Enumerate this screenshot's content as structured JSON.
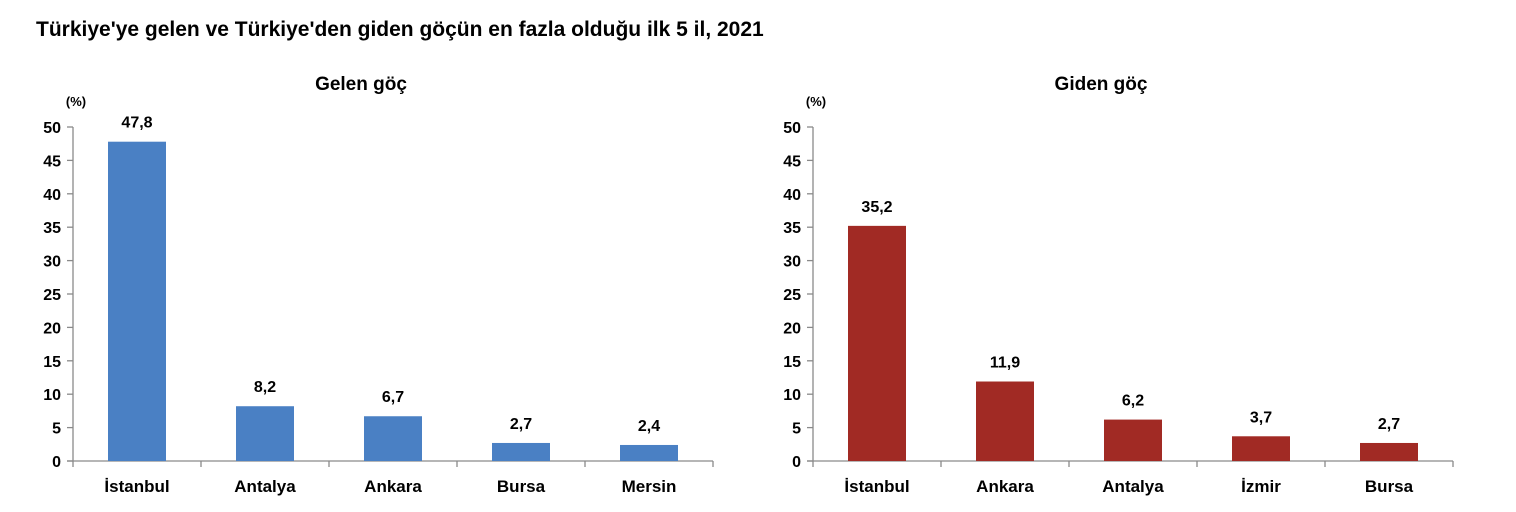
{
  "title": "Türkiye'ye gelen ve Türkiye'den giden göçün en fazla olduğu ilk 5 il, 2021",
  "chart_data": [
    {
      "type": "bar",
      "title": "Gelen göç",
      "unit": "(%)",
      "categories": [
        "İstanbul",
        "Antalya",
        "Ankara",
        "Bursa",
        "Mersin"
      ],
      "values": [
        47.8,
        8.2,
        6.7,
        2.7,
        2.4
      ],
      "value_labels": [
        "47,8",
        "8,2",
        "6,7",
        "2,7",
        "2,4"
      ],
      "ylim": [
        0,
        50
      ],
      "yticks": [
        0,
        5,
        10,
        15,
        20,
        25,
        30,
        35,
        40,
        45,
        50
      ],
      "color": "#4a80c4",
      "grid": false,
      "legend": false
    },
    {
      "type": "bar",
      "title": "Giden göç",
      "unit": "(%)",
      "categories": [
        "İstanbul",
        "Ankara",
        "Antalya",
        "İzmir",
        "Bursa"
      ],
      "values": [
        35.2,
        11.9,
        6.2,
        3.7,
        2.7
      ],
      "value_labels": [
        "35,2",
        "11,9",
        "6,2",
        "3,7",
        "2,7"
      ],
      "ylim": [
        0,
        50
      ],
      "yticks": [
        0,
        5,
        10,
        15,
        20,
        25,
        30,
        35,
        40,
        45,
        50
      ],
      "color": "#a12a24",
      "grid": false,
      "legend": false
    }
  ]
}
